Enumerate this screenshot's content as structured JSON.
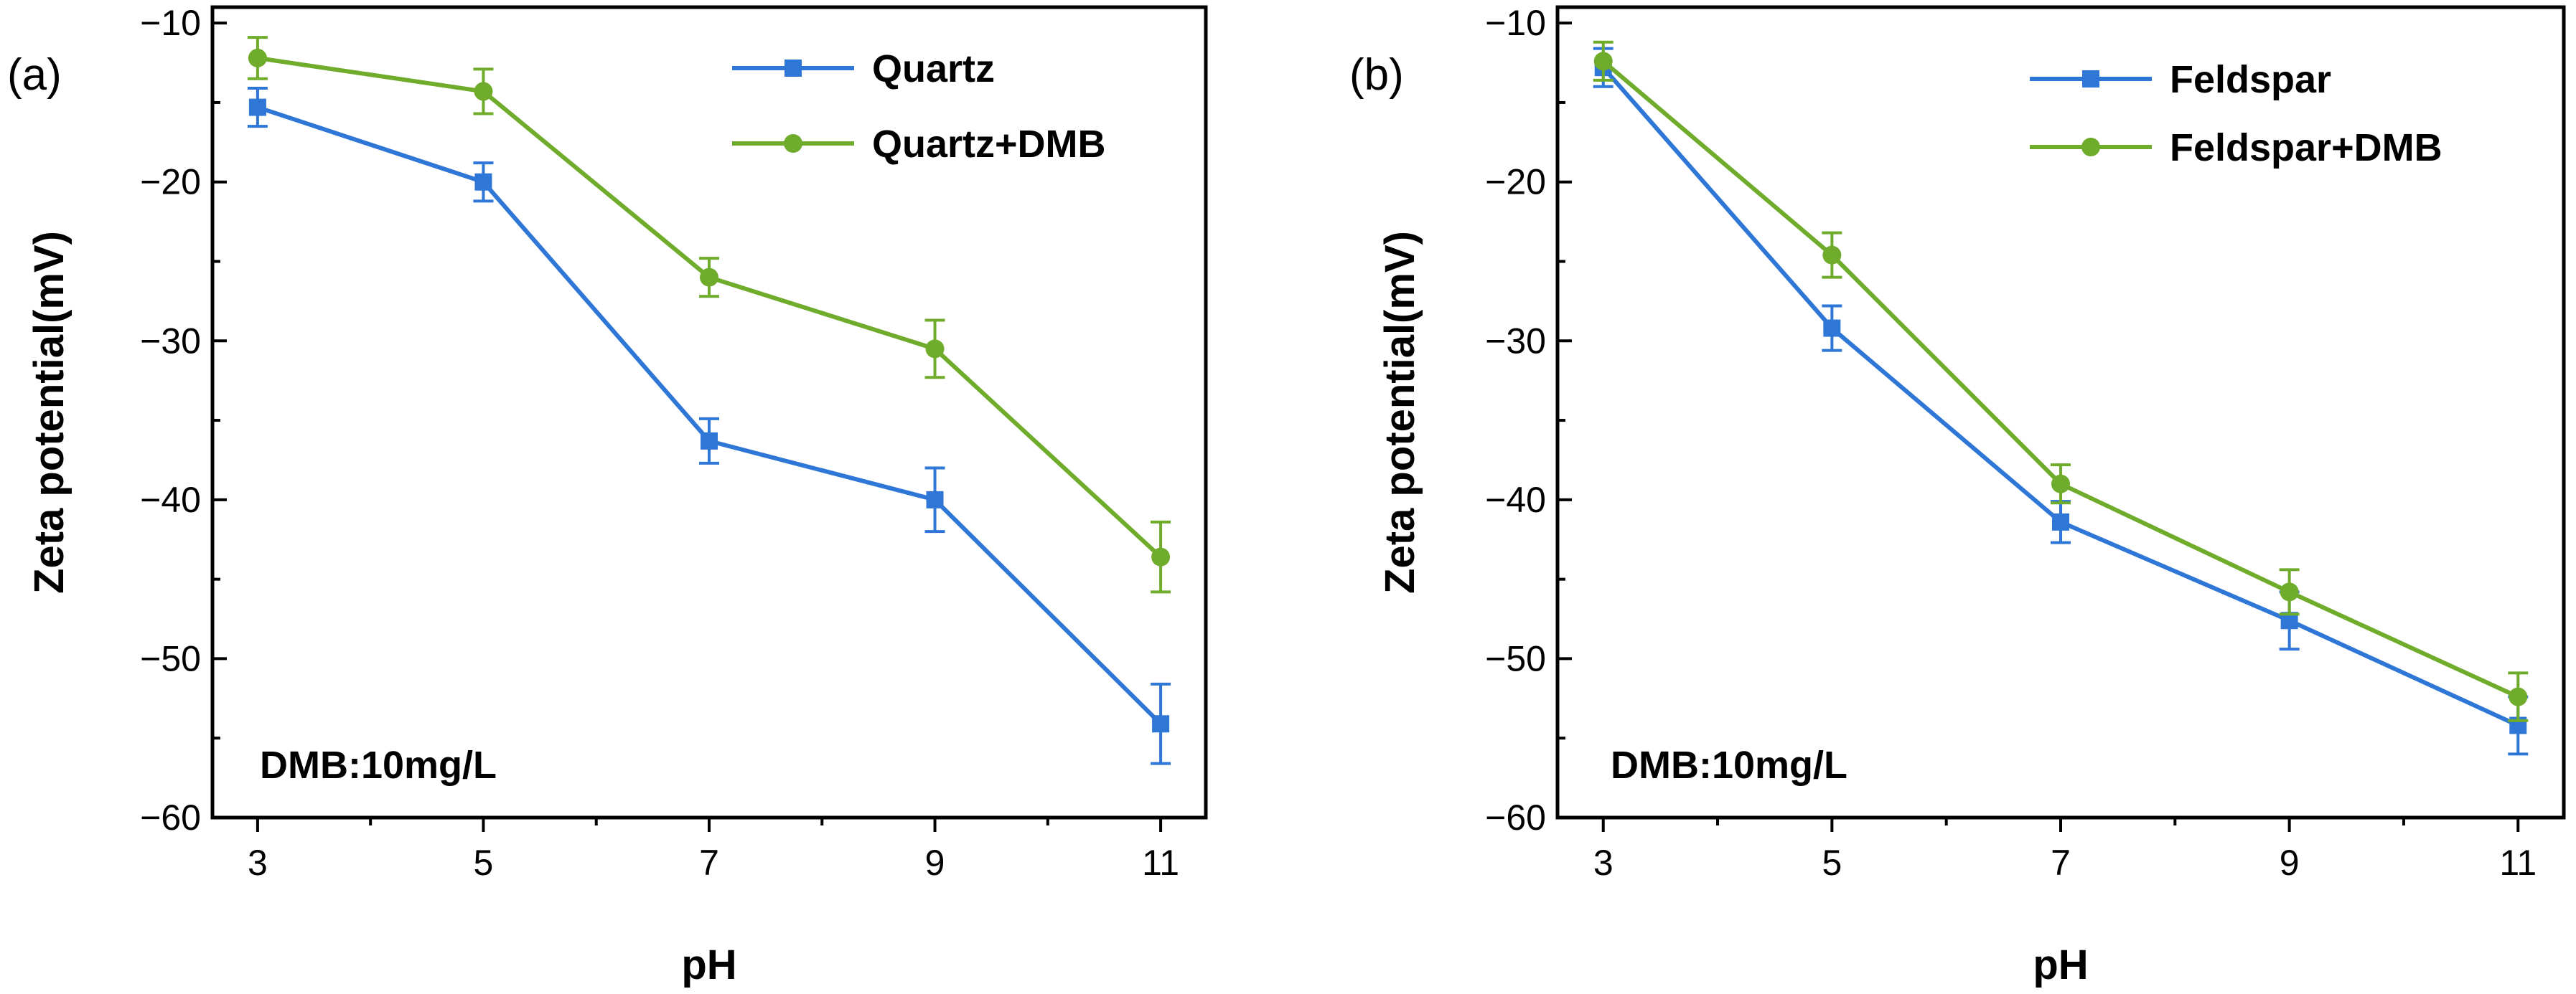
{
  "chart_data": [
    {
      "type": "line",
      "panel_label": "(a)",
      "xlabel": "pH",
      "ylabel": "Zeta potential(mV)",
      "xlim": [
        2.6,
        11.4
      ],
      "ylim": [
        -60,
        -9
      ],
      "x_ticks": [
        3,
        5,
        7,
        9,
        11
      ],
      "y_ticks": [
        -10,
        -20,
        -30,
        -40,
        -50,
        -60
      ],
      "legend_position": "top-right",
      "annotation": "DMB:10mg/L",
      "series": [
        {
          "name": "Quartz",
          "marker": "square",
          "color": "#2f77d6",
          "x": [
            3,
            5,
            7,
            9,
            11
          ],
          "y": [
            -15.3,
            -20.0,
            -36.3,
            -40.0,
            -54.1
          ],
          "error": [
            1.2,
            1.2,
            1.4,
            2.0,
            2.5
          ]
        },
        {
          "name": "Quartz+DMB",
          "marker": "circle",
          "color": "#6fac2b",
          "x": [
            3,
            5,
            7,
            9,
            11
          ],
          "y": [
            -12.2,
            -14.3,
            -26.0,
            -30.5,
            -43.6
          ],
          "error": [
            1.3,
            1.4,
            1.2,
            1.8,
            2.2
          ]
        }
      ]
    },
    {
      "type": "line",
      "panel_label": "(b)",
      "xlabel": "pH",
      "ylabel": "Zeta potential(mV)",
      "xlim": [
        2.6,
        11.4
      ],
      "ylim": [
        -60,
        -9
      ],
      "x_ticks": [
        3,
        5,
        7,
        9,
        11
      ],
      "y_ticks": [
        -10,
        -20,
        -30,
        -40,
        -50,
        -60
      ],
      "legend_position": "top-right",
      "annotation": "DMB:10mg/L",
      "series": [
        {
          "name": "Feldspar",
          "marker": "square",
          "color": "#2f77d6",
          "x": [
            3,
            5,
            7,
            9,
            11
          ],
          "y": [
            -12.8,
            -29.2,
            -41.4,
            -47.6,
            -54.2
          ],
          "error": [
            1.2,
            1.4,
            1.3,
            1.8,
            1.8
          ]
        },
        {
          "name": "Feldspar+DMB",
          "marker": "circle",
          "color": "#6fac2b",
          "x": [
            3,
            5,
            7,
            9,
            11
          ],
          "y": [
            -12.4,
            -24.6,
            -39.0,
            -45.8,
            -52.4
          ],
          "error": [
            1.2,
            1.4,
            1.2,
            1.4,
            1.5
          ]
        }
      ]
    }
  ]
}
